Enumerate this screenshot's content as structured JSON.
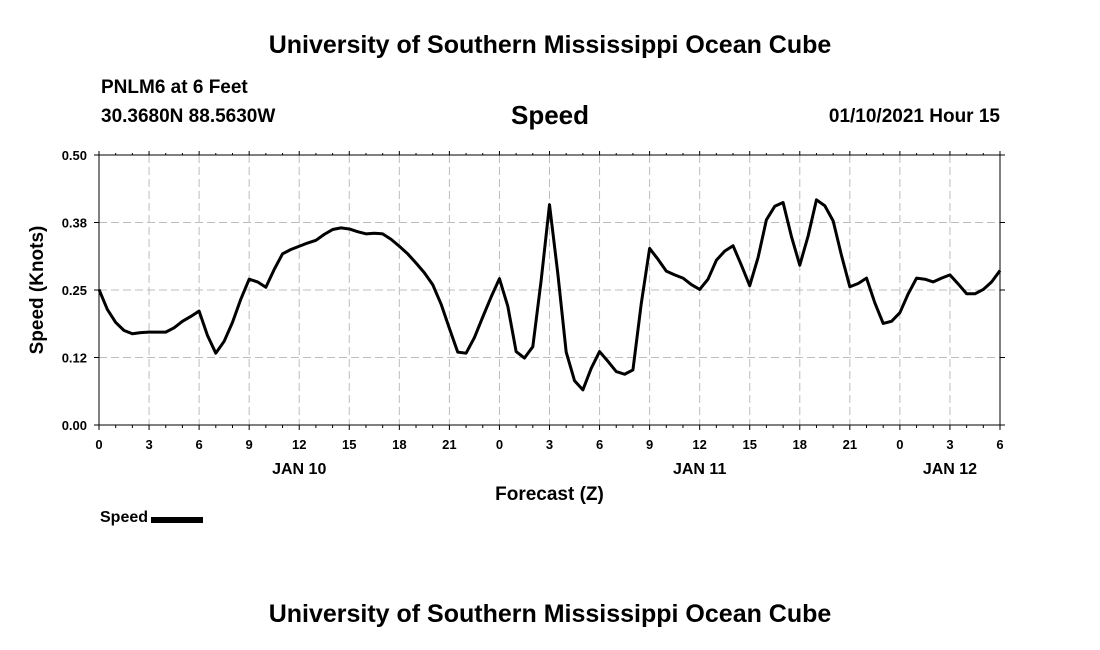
{
  "header": {
    "title": "University of Southern Mississippi Ocean Cube",
    "station": "PNLM6 at 6 Feet",
    "coords": "30.3680N 88.5630W",
    "subtitle": "Speed",
    "datetime": "01/10/2021 Hour 15"
  },
  "footer": {
    "title": "University of Southern Mississippi Ocean Cube"
  },
  "legend": {
    "label": "Speed"
  },
  "colors": {
    "line": "#000000",
    "grid": "#bdbdbd"
  },
  "chart_data": {
    "type": "line",
    "title": "Speed",
    "xlabel": "Forecast (Z)",
    "ylabel": "Speed (Knots)",
    "ylim": [
      0.0,
      0.5
    ],
    "xlim": [
      0,
      54
    ],
    "yticks": [
      {
        "value": 0.0,
        "label": "0.00"
      },
      {
        "value": 0.125,
        "label": "0.12"
      },
      {
        "value": 0.25,
        "label": "0.25"
      },
      {
        "value": 0.375,
        "label": "0.38"
      },
      {
        "value": 0.5,
        "label": "0.50"
      }
    ],
    "xticks": [
      {
        "value": 0,
        "label": "0"
      },
      {
        "value": 3,
        "label": "3"
      },
      {
        "value": 6,
        "label": "6"
      },
      {
        "value": 9,
        "label": "9"
      },
      {
        "value": 12,
        "label": "12"
      },
      {
        "value": 15,
        "label": "15"
      },
      {
        "value": 18,
        "label": "18"
      },
      {
        "value": 21,
        "label": "21"
      },
      {
        "value": 24,
        "label": "0"
      },
      {
        "value": 27,
        "label": "3"
      },
      {
        "value": 30,
        "label": "6"
      },
      {
        "value": 33,
        "label": "9"
      },
      {
        "value": 36,
        "label": "12"
      },
      {
        "value": 39,
        "label": "15"
      },
      {
        "value": 42,
        "label": "18"
      },
      {
        "value": 45,
        "label": "21"
      },
      {
        "value": 48,
        "label": "0"
      },
      {
        "value": 51,
        "label": "3"
      },
      {
        "value": 54,
        "label": "6"
      }
    ],
    "date_labels": [
      {
        "value": 12,
        "label": "JAN 10"
      },
      {
        "value": 36,
        "label": "JAN 11"
      },
      {
        "value": 51,
        "label": "JAN 12"
      }
    ],
    "grid": true,
    "legend_position": "bottom-left",
    "series": [
      {
        "name": "Speed",
        "x": [
          0,
          0.5,
          1,
          1.5,
          2,
          2.5,
          3,
          3.5,
          4,
          4.5,
          5,
          5.5,
          6,
          6.5,
          7,
          7.5,
          8,
          8.5,
          9,
          9.5,
          10,
          10.5,
          11,
          11.5,
          12,
          12.5,
          13,
          13.5,
          14,
          14.5,
          15,
          15.5,
          16,
          16.5,
          17,
          17.5,
          18,
          18.5,
          19,
          19.5,
          20,
          20.5,
          21,
          21.5,
          22,
          22.5,
          23,
          23.5,
          24,
          24.5,
          25,
          25.5,
          26,
          26.5,
          27,
          27.5,
          28,
          28.5,
          29,
          29.5,
          30,
          30.5,
          31,
          31.5,
          32,
          32.5,
          33,
          33.5,
          34,
          34.5,
          35,
          35.5,
          36,
          36.5,
          37,
          37.5,
          38,
          38.5,
          39,
          39.5,
          40,
          40.5,
          41,
          41.5,
          42,
          42.5,
          43,
          43.5,
          44,
          44.5,
          45,
          45.5,
          46,
          46.5,
          47,
          47.5,
          48,
          48.5,
          49,
          49.5,
          50,
          50.5,
          51,
          51.5,
          52,
          52.5,
          53,
          53.5,
          54
        ],
        "values": [
          0.251,
          0.214,
          0.19,
          0.175,
          0.169,
          0.171,
          0.172,
          0.172,
          0.172,
          0.18,
          0.192,
          0.201,
          0.211,
          0.166,
          0.133,
          0.155,
          0.19,
          0.233,
          0.27,
          0.265,
          0.255,
          0.288,
          0.317,
          0.325,
          0.331,
          0.337,
          0.342,
          0.353,
          0.362,
          0.365,
          0.363,
          0.358,
          0.354,
          0.355,
          0.354,
          0.344,
          0.331,
          0.317,
          0.3,
          0.282,
          0.26,
          0.224,
          0.179,
          0.135,
          0.133,
          0.162,
          0.2,
          0.237,
          0.271,
          0.22,
          0.136,
          0.124,
          0.145,
          0.268,
          0.408,
          0.28,
          0.135,
          0.082,
          0.065,
          0.105,
          0.136,
          0.118,
          0.099,
          0.094,
          0.102,
          0.225,
          0.327,
          0.307,
          0.285,
          0.278,
          0.272,
          0.26,
          0.251,
          0.27,
          0.305,
          0.322,
          0.332,
          0.296,
          0.258,
          0.31,
          0.38,
          0.405,
          0.412,
          0.349,
          0.296,
          0.35,
          0.417,
          0.406,
          0.378,
          0.314,
          0.256,
          0.262,
          0.272,
          0.226,
          0.188,
          0.192,
          0.208,
          0.243,
          0.272,
          0.27,
          0.265,
          0.272,
          0.278,
          0.261,
          0.243,
          0.243,
          0.251,
          0.265,
          0.286
        ]
      }
    ]
  }
}
